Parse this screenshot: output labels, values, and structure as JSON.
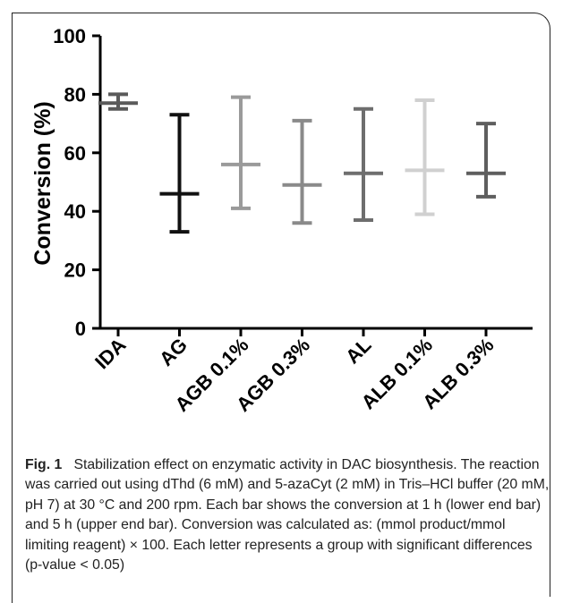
{
  "chart_data": {
    "type": "error_bar",
    "title": "",
    "xlabel": "",
    "ylabel": "Conversion (%)",
    "ylim": [
      0,
      100
    ],
    "yticks": [
      0,
      20,
      40,
      60,
      80,
      100
    ],
    "grid": false,
    "categories": [
      "IDA",
      "AG",
      "AGB 0.1%",
      "AGB 0.3%",
      "AL",
      "ALB 0.1%",
      "ALB 0.3%"
    ],
    "series": [
      {
        "low": [
          75,
          33,
          41,
          36,
          37,
          39,
          45
        ],
        "mid": [
          77,
          46,
          56,
          49,
          53,
          54,
          53
        ],
        "high": [
          80,
          73,
          79,
          71,
          75,
          78,
          70
        ]
      }
    ],
    "colors": [
      "#5a5a5a",
      "#111111",
      "#9a9a9a",
      "#8a8a8a",
      "#6e6e6e",
      "#d0d0d0",
      "#5e5e5e"
    ]
  },
  "caption": {
    "label": "Fig. 1",
    "text": "Stabilization effect on enzymatic activity in DAC biosynthesis. The reaction was carried out using dThd (6 mM) and 5-azaCyt (2 mM) in Tris–HCl buffer (20 mM, pH 7) at 30 °C and 200 rpm. Each bar shows the conversion at 1 h (lower end bar) and 5 h (upper end bar). Conversion was calculated as: (mmol product/mmol limiting reagent) × 100. Each letter represents a group with significant differences (p-value < 0.05)"
  }
}
